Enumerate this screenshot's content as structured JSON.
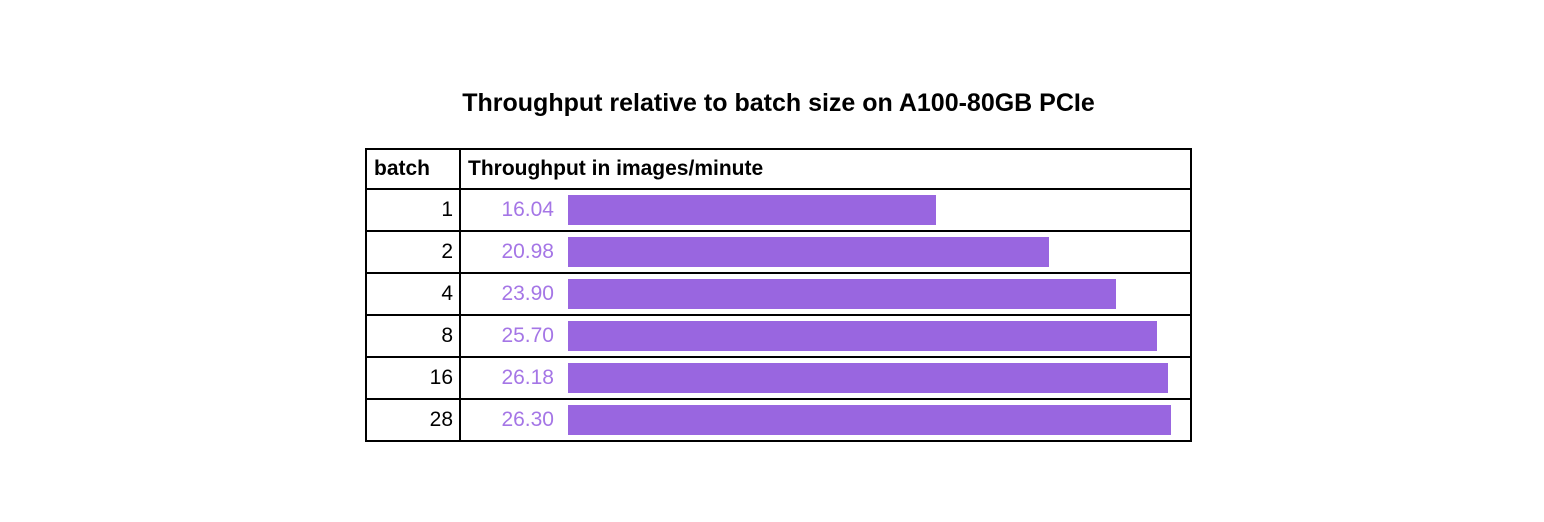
{
  "title": "Throughput relative to batch size on A100-80GB PCIe",
  "table": {
    "columns": [
      {
        "label": "batch"
      },
      {
        "label": "Throughput in images/minute"
      }
    ]
  },
  "chart_data": {
    "type": "bar",
    "orientation": "horizontal",
    "title": "Throughput relative to batch size on A100-80GB PCIe",
    "categories": [
      "1",
      "2",
      "4",
      "8",
      "16",
      "28"
    ],
    "values": [
      16.04,
      20.98,
      23.9,
      25.7,
      26.18,
      26.3
    ],
    "value_labels": [
      "16.04",
      "20.98",
      "23.90",
      "25.70",
      "26.18",
      "26.30"
    ],
    "xlabel": "Throughput in images/minute",
    "ylabel": "batch",
    "xlim": [
      0,
      26.3
    ],
    "legend": "none",
    "grid": "off",
    "bar_color": "#9966e0",
    "value_text_color": "#a576e6",
    "border_color": "#000000"
  }
}
